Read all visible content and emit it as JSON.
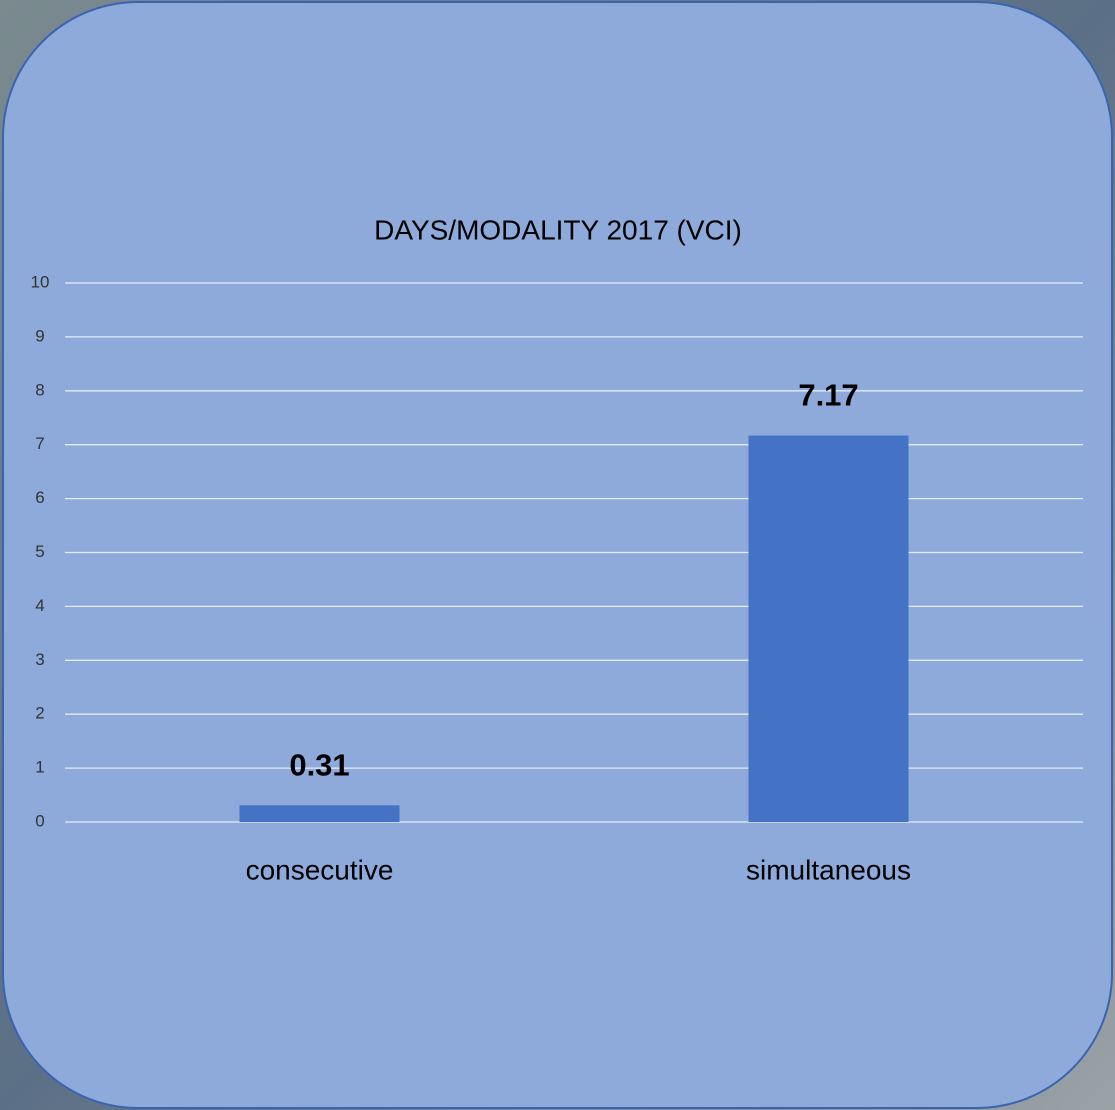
{
  "chart_data": {
    "type": "bar",
    "title": "DAYS/MODALITY 2017 (VCI)",
    "categories": [
      "consecutive",
      "simultaneous"
    ],
    "values": [
      0.31,
      7.17
    ],
    "color": "#4472c4",
    "ylim": [
      0,
      10
    ],
    "yticks": [
      0,
      1,
      2,
      3,
      4,
      5,
      6,
      7,
      8,
      9,
      10
    ],
    "grid": true,
    "data_labels": true
  }
}
